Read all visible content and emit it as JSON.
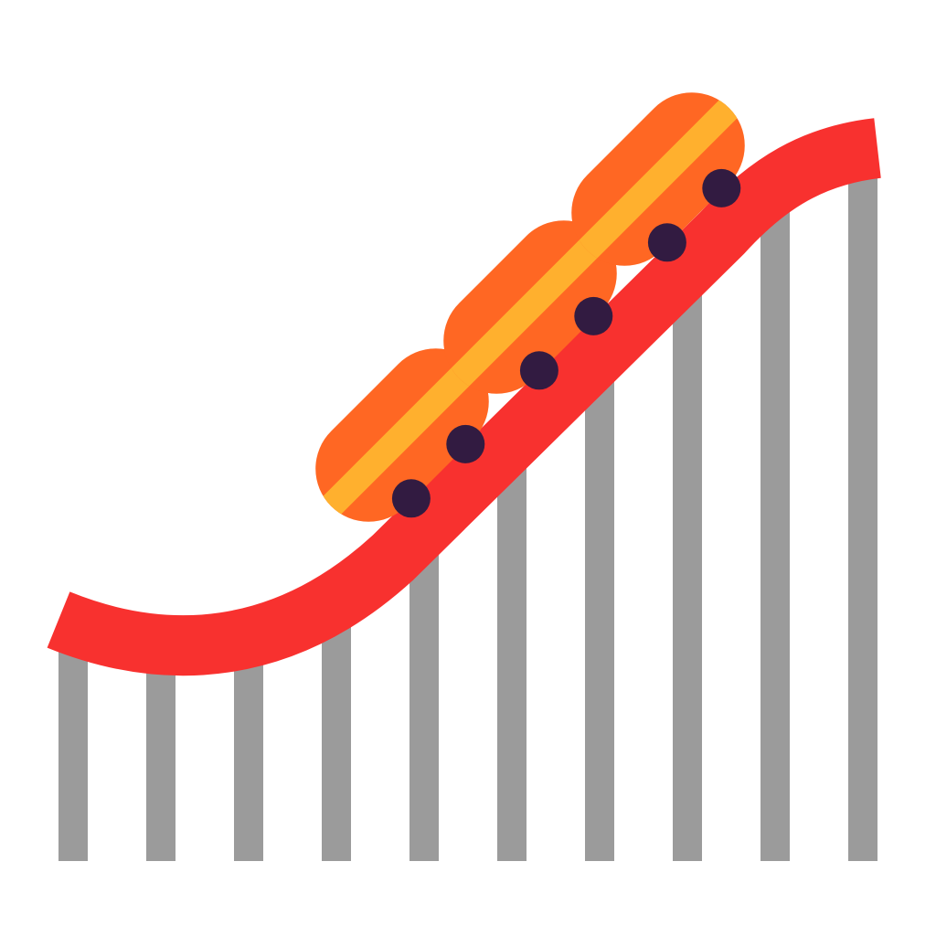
{
  "illustration": {
    "name": "roller-coaster",
    "subject": "roller-coaster-icon",
    "colors": {
      "background": "#FFFFFF",
      "support_posts": "#9B9B9B",
      "track": "#F8312F",
      "car_outer": "#FF6723",
      "car_stripe": "#FFB02E",
      "wheels": "#321B41"
    },
    "support_post_count": 10,
    "car_count": 3,
    "wheels_per_car": 2
  }
}
